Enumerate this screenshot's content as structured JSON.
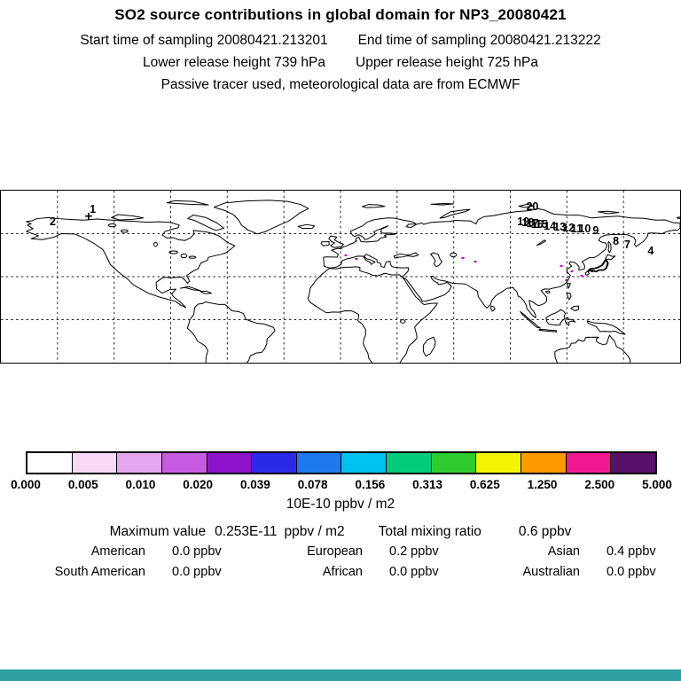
{
  "header": {
    "title": "SO2 source contributions in global domain for NP3_20080421",
    "start_time": "Start time of sampling 20080421.213201",
    "end_time": "End time of sampling 20080421.213222",
    "lower_release": "Lower release height  739 hPa",
    "upper_release": "Upper release height  725 hPa",
    "tracer_note": "Passive tracer used, meteorological data are from ECMWF"
  },
  "map": {
    "grid": {
      "lon_min": -180,
      "lon_max": 180,
      "lat_min": -30,
      "lat_max": 90,
      "lon_step": 30,
      "lat_step": 30
    }
  },
  "colorbar": {
    "tick_labels": [
      "0.000",
      "0.005",
      "0.010",
      "0.020",
      "0.039",
      "0.078",
      "0.156",
      "0.313",
      "0.625",
      "1.250",
      "2.500",
      "5.000"
    ],
    "units": "10E-10 ppbv / m2",
    "colors": [
      "#ffffff",
      "#f6d9f6",
      "#e4a7ef",
      "#c65ae0",
      "#8d12c9",
      "#2a2ae6",
      "#1e78f0",
      "#00c2f0",
      "#00cc7a",
      "#2ecc2e",
      "#f5f500",
      "#ff9a00",
      "#f01890",
      "#581068"
    ]
  },
  "stats": {
    "max_label": "Maximum value",
    "max_value": "0.253E-11",
    "max_units": "ppbv / m2",
    "tmr_label": "Total mixing ratio",
    "tmr_value": "0.6 ppbv",
    "regions": [
      {
        "label": "American",
        "value": "0.0 ppbv"
      },
      {
        "label": "European",
        "value": "0.2 ppbv"
      },
      {
        "label": "Asian",
        "value": "0.4 ppbv"
      },
      {
        "label": "South American",
        "value": "0.0 ppbv"
      },
      {
        "label": "African",
        "value": "0.0 ppbv"
      },
      {
        "label": "Australian",
        "value": "0.0 ppbv"
      }
    ]
  },
  "footer": {
    "strip_color": "#2f9fa4"
  },
  "chart_data": {
    "type": "heatmap",
    "title": "SO2 source contributions in global domain for NP3_20080421",
    "projection": "equirectangular",
    "lon_range": [
      -180,
      180
    ],
    "lat_range": [
      -30,
      90
    ],
    "grid_step_deg": 30,
    "colorbar_units": "10E-10 ppbv / m2",
    "levels": [
      0.0,
      0.005,
      0.01,
      0.02,
      0.039,
      0.078,
      0.156,
      0.313,
      0.625,
      1.25,
      2.5,
      5.0
    ],
    "level_colors": [
      "#ffffff",
      "#f6d9f6",
      "#e4a7ef",
      "#c65ae0",
      "#8d12c9",
      "#2a2ae6",
      "#1e78f0",
      "#00c2f0",
      "#00cc7a",
      "#2ecc2e",
      "#f5f500",
      "#ff9a00",
      "#f01890",
      "#581068"
    ],
    "max_value": "0.253E-11 ppbv / m2",
    "total_mixing_ratio_ppbv": 0.6,
    "region_contributions_ppbv": {
      "American": 0.0,
      "European": 0.2,
      "Asian": 0.4,
      "South American": 0.0,
      "African": 0.0,
      "Australian": 0.0
    },
    "trajectory_markers": [
      {
        "label": "2",
        "lon": -152.5,
        "lat": 68.5
      },
      {
        "label": "1",
        "lon": -131.3,
        "lat": 77.0
      },
      {
        "label": "+",
        "lon": -133.5,
        "lat": 72.0
      },
      {
        "label": "20",
        "lon": 101.7,
        "lat": 79.0
      },
      {
        "label": "19",
        "lon": 96.9,
        "lat": 68.4
      },
      {
        "label": "18",
        "lon": 99.4,
        "lat": 67.6
      },
      {
        "label": "17",
        "lon": 101.8,
        "lat": 67.2
      },
      {
        "label": "16",
        "lon": 104.2,
        "lat": 66.8
      },
      {
        "label": "15",
        "lon": 106.6,
        "lat": 66.4
      },
      {
        "label": "14",
        "lon": 111.0,
        "lat": 65.3
      },
      {
        "label": "13",
        "lon": 116.2,
        "lat": 64.7
      },
      {
        "label": "12",
        "lon": 120.9,
        "lat": 64.2
      },
      {
        "label": "11",
        "lon": 125.2,
        "lat": 63.7
      },
      {
        "label": "10",
        "lon": 129.4,
        "lat": 63.2
      },
      {
        "label": "9",
        "lon": 135.3,
        "lat": 62.1
      },
      {
        "label": "8",
        "lon": 146.0,
        "lat": 54.5
      },
      {
        "label": "7",
        "lon": 152.0,
        "lat": 52.5
      },
      {
        "label": "4",
        "lon": 164.4,
        "lat": 47.9
      }
    ],
    "concentration_specks": [
      {
        "lon": 2.8,
        "lat": 44.8,
        "color": "#cc00cc"
      },
      {
        "lon": 8.4,
        "lat": 42.4,
        "color": "#bb00bb"
      },
      {
        "lon": 64.7,
        "lat": 43.0,
        "color": "#cc00cc"
      },
      {
        "lon": 71.3,
        "lat": 40.5,
        "color": "#aa00aa"
      },
      {
        "lon": 117.2,
        "lat": 37.4,
        "color": "#cc00cc"
      },
      {
        "lon": 122.8,
        "lat": 33.7,
        "color": "#bb00bb"
      },
      {
        "lon": 128.0,
        "lat": 30.6,
        "color": "#cc00cc"
      },
      {
        "lon": 120.0,
        "lat": 27.5,
        "color": "#9900bb"
      }
    ]
  }
}
